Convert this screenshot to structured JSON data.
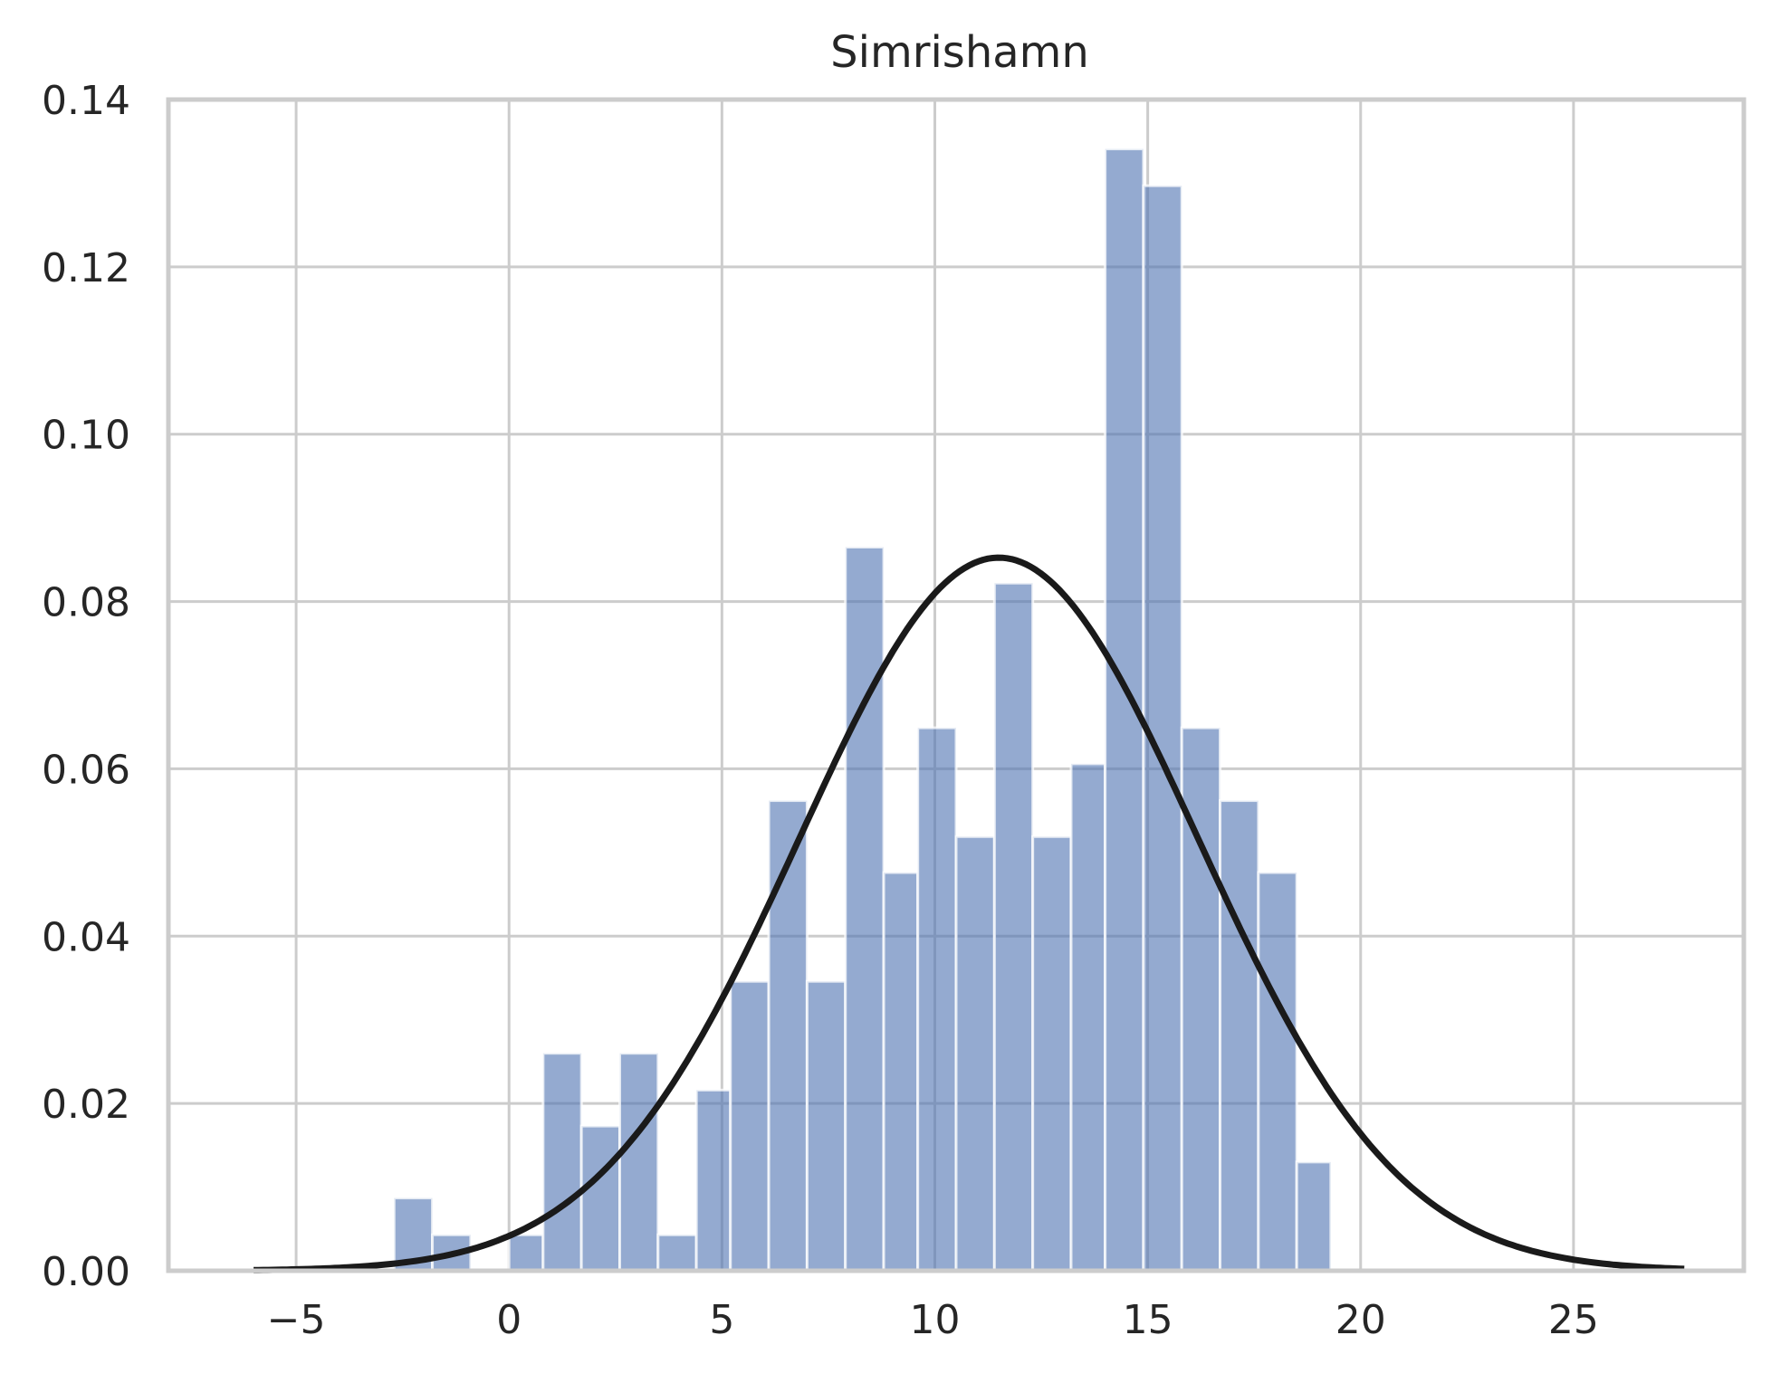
{
  "chart_data": {
    "type": "bar",
    "title": "Simrishamn",
    "xlabel": "",
    "ylabel": "",
    "xlim": [
      -8,
      29
    ],
    "ylim": [
      0,
      0.14
    ],
    "grid": true,
    "x_ticks": [
      -5,
      0,
      5,
      10,
      15,
      20,
      25
    ],
    "x_tick_labels": [
      "−5",
      "0",
      "5",
      "10",
      "15",
      "20",
      "25"
    ],
    "y_ticks": [
      0,
      0.02,
      0.04,
      0.06,
      0.08,
      0.1,
      0.12,
      0.14
    ],
    "y_tick_labels": [
      "0.00",
      "0.02",
      "0.04",
      "0.06",
      "0.08",
      "0.10",
      "0.12",
      "0.14"
    ],
    "bar_color": "#4c72b0",
    "curve_color": "#1a1a1a",
    "bins": [
      {
        "x0": -2.7,
        "x1": -1.8,
        "value": 0.0087
      },
      {
        "x0": -1.8,
        "x1": -0.9,
        "value": 0.0043
      },
      {
        "x0": -0.9,
        "x1": 0.0,
        "value": 0.0
      },
      {
        "x0": 0.0,
        "x1": 0.8,
        "value": 0.0043
      },
      {
        "x0": 0.8,
        "x1": 1.7,
        "value": 0.026
      },
      {
        "x0": 1.7,
        "x1": 2.6,
        "value": 0.0173
      },
      {
        "x0": 2.6,
        "x1": 3.5,
        "value": 0.026
      },
      {
        "x0": 3.5,
        "x1": 4.4,
        "value": 0.0043
      },
      {
        "x0": 4.4,
        "x1": 5.2,
        "value": 0.0216
      },
      {
        "x0": 5.2,
        "x1": 6.1,
        "value": 0.0346
      },
      {
        "x0": 6.1,
        "x1": 7.0,
        "value": 0.0562
      },
      {
        "x0": 7.0,
        "x1": 7.9,
        "value": 0.0346
      },
      {
        "x0": 7.9,
        "x1": 8.8,
        "value": 0.0865
      },
      {
        "x0": 8.8,
        "x1": 9.6,
        "value": 0.0476
      },
      {
        "x0": 9.6,
        "x1": 10.5,
        "value": 0.0649
      },
      {
        "x0": 10.5,
        "x1": 11.4,
        "value": 0.0519
      },
      {
        "x0": 11.4,
        "x1": 12.3,
        "value": 0.0822
      },
      {
        "x0": 12.3,
        "x1": 13.2,
        "value": 0.0519
      },
      {
        "x0": 13.2,
        "x1": 14.0,
        "value": 0.0606
      },
      {
        "x0": 14.0,
        "x1": 14.9,
        "value": 0.1341
      },
      {
        "x0": 14.9,
        "x1": 15.8,
        "value": 0.1297
      },
      {
        "x0": 15.8,
        "x1": 16.7,
        "value": 0.0649
      },
      {
        "x0": 16.7,
        "x1": 17.6,
        "value": 0.0562
      },
      {
        "x0": 17.6,
        "x1": 18.5,
        "value": 0.0476
      },
      {
        "x0": 18.5,
        "x1": 19.3,
        "value": 0.013
      }
    ],
    "fit_curve": {
      "type": "normal_pdf",
      "mean": 11.5,
      "std": 4.68,
      "x_range": [
        -6,
        27.6
      ]
    }
  }
}
